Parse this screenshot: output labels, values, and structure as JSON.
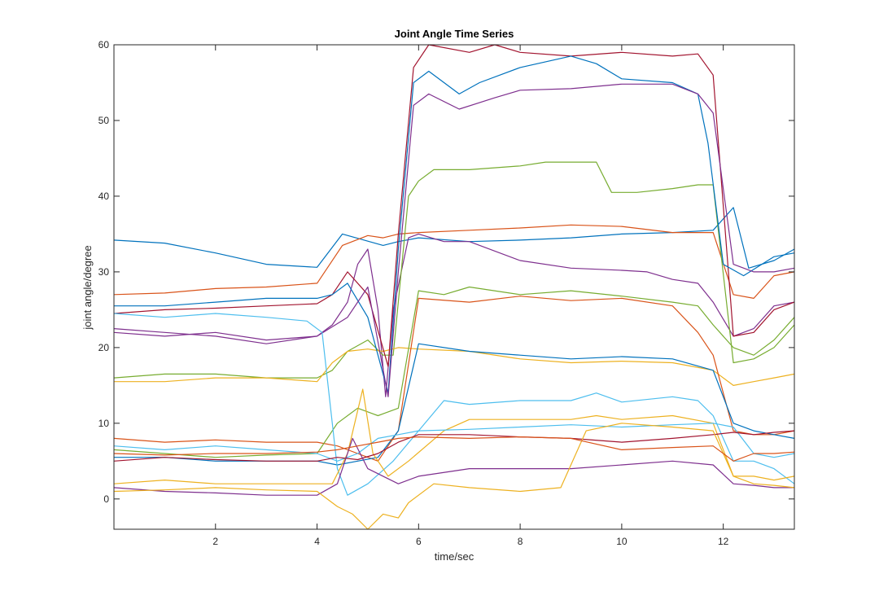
{
  "chart_data": {
    "type": "line",
    "title": "Joint Angle Time Series",
    "xlabel": "time/sec",
    "ylabel": "joint angle/degree",
    "xlim": [
      0,
      13.4
    ],
    "ylim": [
      -4,
      60
    ],
    "xticks": [
      2,
      4,
      6,
      8,
      10,
      12
    ],
    "yticks": [
      0,
      10,
      20,
      30,
      40,
      50,
      60
    ],
    "grid": false,
    "colors": [
      "#0072BD",
      "#D95319",
      "#EDB120",
      "#7E2F8E",
      "#77AC30",
      "#4DBEEE",
      "#A2142F"
    ],
    "series": [
      {
        "color_index": 0,
        "x": [
          0,
          1,
          2,
          3,
          4,
          4.5,
          5.3,
          5.6,
          6,
          7,
          8,
          9,
          10,
          11,
          11.8,
          12.2,
          12.5,
          13,
          13.4
        ],
        "y": [
          34.2,
          33.8,
          32.5,
          31,
          30.6,
          35,
          33.5,
          34,
          34.5,
          34,
          34.2,
          34.5,
          35,
          35.2,
          35.5,
          38.5,
          30.5,
          31.5,
          33
        ]
      },
      {
        "color_index": 1,
        "x": [
          0,
          1,
          2,
          3,
          4,
          4.5,
          5,
          5.3,
          5.6,
          6,
          7,
          8,
          9,
          10,
          11,
          11.8,
          12.2,
          12.6,
          13,
          13.4
        ],
        "y": [
          27,
          27.2,
          27.8,
          28,
          28.5,
          33.5,
          34.8,
          34.5,
          35,
          35.2,
          35.5,
          35.8,
          36.2,
          36,
          35.2,
          35.2,
          27,
          26.5,
          29.5,
          30
        ]
      },
      {
        "color_index": 3,
        "x": [
          0,
          1,
          2,
          3,
          4,
          4.3,
          4.6,
          4.8,
          5,
          5.2,
          5.35,
          5.5,
          5.8,
          6,
          6.5,
          7,
          8,
          9,
          10,
          10.5,
          11,
          11.5,
          11.8,
          12.2,
          12.6,
          13,
          13.4
        ],
        "y": [
          22,
          21.5,
          22,
          21,
          21.5,
          23,
          26,
          31,
          33,
          25,
          13.5,
          25,
          34.5,
          35,
          34,
          34,
          31.5,
          30.5,
          30.2,
          30,
          29,
          28.5,
          26,
          21.5,
          22.5,
          25.5,
          26
        ]
      },
      {
        "color_index": 4,
        "x": [
          0,
          1,
          2,
          3,
          4,
          4.3,
          4.6,
          5,
          5.3,
          5.5,
          5.8,
          6,
          6.3,
          7,
          8,
          8.5,
          9,
          9.5,
          9.8,
          10.3,
          11,
          11.5,
          11.8,
          12.2,
          12.6,
          13,
          13.4
        ],
        "y": [
          16,
          16.5,
          16.5,
          16,
          16,
          17,
          19.5,
          21,
          19,
          19,
          40,
          42,
          43.5,
          43.5,
          44,
          44.5,
          44.5,
          44.5,
          40.5,
          40.5,
          41,
          41.5,
          41.5,
          18,
          18.5,
          20,
          23
        ]
      },
      {
        "color_index": 2,
        "x": [
          0,
          1,
          2,
          3,
          4,
          4.3,
          4.6,
          5,
          5.3,
          5.6,
          6,
          7,
          8,
          9,
          10,
          11,
          11.8,
          12.2,
          12.6,
          13,
          13.4
        ],
        "y": [
          15.5,
          15.5,
          16,
          16,
          15.5,
          18,
          19.5,
          19.8,
          19.5,
          20,
          19.8,
          19.5,
          18.5,
          18,
          18.2,
          18,
          17,
          15,
          15.5,
          16,
          16.5
        ]
      },
      {
        "color_index": 6,
        "x": [
          0,
          1,
          2,
          3,
          4,
          4.3,
          4.6,
          5,
          5.4,
          5.6,
          5.9,
          6.2,
          7,
          7.5,
          8,
          9,
          10,
          11,
          11.5,
          11.8,
          12.2,
          12.6,
          13,
          13.4
        ],
        "y": [
          24.5,
          25,
          25.2,
          25.5,
          25.8,
          27,
          30,
          27,
          17.5,
          35,
          57,
          60,
          59,
          60,
          59,
          58.5,
          59,
          58.5,
          58.8,
          56,
          21.5,
          22,
          25,
          26
        ]
      },
      {
        "color_index": 0,
        "x": [
          0,
          1,
          2,
          3,
          4,
          4.3,
          4.6,
          5,
          5.4,
          5.6,
          5.9,
          6.2,
          6.8,
          7.2,
          8,
          9,
          9.5,
          10,
          11,
          11.5,
          11.7,
          12,
          12.4,
          13,
          13.4
        ],
        "y": [
          25.5,
          25.5,
          26,
          26.5,
          26.5,
          27,
          28.5,
          24,
          14,
          33,
          55,
          56.5,
          53.5,
          55,
          57,
          58.5,
          57.5,
          55.5,
          55,
          53.5,
          47,
          31,
          29.5,
          32,
          32.5
        ]
      },
      {
        "color_index": 3,
        "x": [
          0,
          1,
          2,
          3,
          4,
          4.6,
          5,
          5.4,
          5.6,
          5.9,
          6.2,
          6.8,
          7.5,
          8,
          9,
          10,
          11,
          11.5,
          11.8,
          12.2,
          12.6,
          13,
          13.4
        ],
        "y": [
          22.5,
          22,
          21.5,
          20.5,
          21.5,
          24,
          28,
          13.5,
          30,
          52,
          53.5,
          51.5,
          53,
          54,
          54.2,
          54.8,
          54.8,
          53.5,
          51,
          31,
          30,
          30,
          30.5
        ]
      },
      {
        "color_index": 1,
        "x": [
          0,
          1,
          2,
          3,
          4,
          4.4,
          4.8,
          5.2,
          5.6,
          6,
          7,
          8,
          9,
          10,
          11,
          11.5,
          11.8,
          12.2,
          12.6,
          13,
          13.4
        ],
        "y": [
          8,
          7.5,
          7.8,
          7.5,
          7.5,
          7,
          6,
          5,
          9,
          26.5,
          26,
          26.8,
          26.2,
          26.5,
          25.5,
          22,
          19,
          9,
          8.5,
          8.5,
          9
        ]
      },
      {
        "color_index": 4,
        "x": [
          0,
          1,
          2,
          3,
          4,
          4.4,
          4.8,
          5.2,
          5.6,
          6,
          6.5,
          7,
          8,
          9,
          10,
          11,
          11.5,
          11.8,
          12.2,
          12.6,
          13,
          13.4
        ],
        "y": [
          6.5,
          6,
          5.5,
          5.8,
          6,
          10,
          12,
          11,
          12,
          27.5,
          27,
          28,
          27,
          27.5,
          26.8,
          26,
          25.5,
          23,
          20,
          19,
          21,
          24
        ]
      },
      {
        "color_index": 0,
        "x": [
          0,
          1,
          2,
          3,
          4,
          4.4,
          4.8,
          5.2,
          5.6,
          6,
          7,
          8,
          9,
          10,
          11,
          11.8,
          12.2,
          12.6,
          13,
          13.4
        ],
        "y": [
          5.5,
          5.5,
          5,
          5,
          5,
          4.5,
          5,
          5.5,
          9,
          20.5,
          19.5,
          19,
          18.5,
          18.8,
          18.5,
          17,
          10,
          9,
          8.5,
          8
        ]
      },
      {
        "color_index": 5,
        "x": [
          0,
          1,
          2,
          3,
          3.8,
          4.1,
          4.4,
          4.6,
          5,
          5.5,
          6,
          6.5,
          7,
          8,
          9,
          9.5,
          10,
          11,
          11.5,
          11.8,
          12.2,
          12.6,
          13,
          13.4
        ],
        "y": [
          24.5,
          24,
          24.5,
          24,
          23.5,
          22,
          4,
          0.5,
          2,
          5,
          9,
          13,
          12.5,
          13,
          13,
          14,
          12.8,
          13.5,
          13,
          11,
          5,
          5,
          4,
          2
        ]
      },
      {
        "color_index": 2,
        "x": [
          0,
          1,
          2,
          3,
          4,
          4.3,
          4.6,
          4.9,
          5.1,
          5.4,
          5.8,
          6.5,
          7,
          8,
          9,
          9.5,
          10,
          11,
          11.8,
          12.2,
          12.6,
          13,
          13.4
        ],
        "y": [
          2,
          2.5,
          2,
          2,
          2,
          2,
          6,
          14.5,
          6,
          3,
          5,
          9,
          10.5,
          10.5,
          10.5,
          11,
          10.5,
          11,
          10,
          3,
          3,
          2.5,
          3
        ]
      },
      {
        "color_index": 5,
        "x": [
          0,
          1,
          2,
          3,
          4,
          4.4,
          4.8,
          5.2,
          5.6,
          6,
          7,
          8,
          9,
          10,
          11,
          11.8,
          12.2,
          12.6,
          13,
          13.4
        ],
        "y": [
          7,
          6.5,
          7,
          6.5,
          6,
          5,
          6,
          8,
          8.5,
          9,
          9.2,
          9.5,
          9.8,
          9.5,
          9.8,
          10,
          9.5,
          6,
          5.5,
          6
        ]
      },
      {
        "color_index": 6,
        "x": [
          0,
          1,
          2,
          3,
          4,
          4.4,
          4.8,
          5.2,
          5.6,
          6,
          7,
          8,
          9,
          10,
          11,
          11.8,
          12.2,
          12.6,
          13,
          13.4
        ],
        "y": [
          5,
          5.5,
          5.2,
          5,
          5,
          5.5,
          5.2,
          6,
          7.5,
          8.5,
          8.5,
          8.2,
          8,
          7.5,
          8,
          8.5,
          8.8,
          8.5,
          8.8,
          9
        ]
      },
      {
        "color_index": 3,
        "x": [
          0,
          1,
          2,
          3,
          4,
          4.4,
          4.7,
          5,
          5.3,
          5.6,
          6,
          7,
          8,
          9,
          10,
          11,
          11.8,
          12.2,
          12.6,
          13,
          13.4
        ],
        "y": [
          1.5,
          1,
          0.8,
          0.5,
          0.5,
          2,
          8,
          4,
          3,
          2,
          3,
          4,
          4,
          4,
          4.5,
          5,
          4.5,
          2,
          1.8,
          1.5,
          1.5
        ]
      },
      {
        "color_index": 2,
        "x": [
          0,
          1,
          2,
          3,
          4,
          4.4,
          4.7,
          5,
          5.3,
          5.6,
          5.8,
          6.3,
          7,
          8,
          8.8,
          9.3,
          10,
          11,
          11.8,
          12.2,
          12.6,
          13,
          13.4
        ],
        "y": [
          1,
          1.2,
          1.5,
          1.2,
          1,
          -1,
          -2,
          -4,
          -2,
          -2.5,
          -0.5,
          2,
          1.5,
          1,
          1.5,
          9,
          10,
          9.5,
          9,
          3,
          2,
          1.8,
          1.5
        ]
      },
      {
        "color_index": 1,
        "x": [
          0,
          1,
          2,
          3,
          4,
          4.4,
          4.8,
          5.2,
          5.6,
          6,
          7,
          8,
          9,
          10,
          11,
          11.8,
          12.2,
          12.6,
          13,
          13.4
        ],
        "y": [
          6,
          5.8,
          6,
          6,
          6.2,
          6.5,
          7,
          7.5,
          8,
          8.2,
          8,
          8.2,
          8,
          6.5,
          6.8,
          7,
          5,
          6,
          6,
          6.2
        ]
      }
    ]
  }
}
